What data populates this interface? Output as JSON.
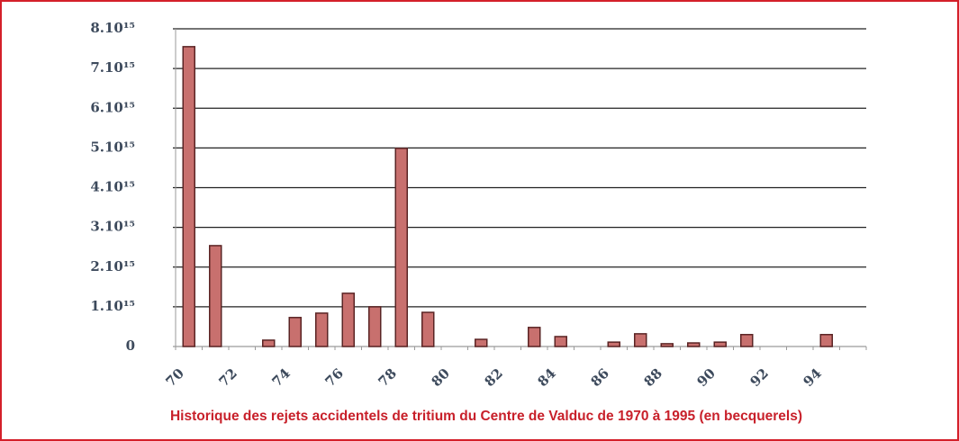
{
  "chart_data": {
    "type": "bar",
    "title": "Historique des rejets accidentels de tritium du Centre de Valduc de 1970 à 1995 (en becquerels)",
    "categories": [
      "70",
      null,
      "72",
      null,
      "74",
      null,
      "76",
      null,
      "78",
      null,
      "80",
      null,
      "82",
      null,
      "84",
      null,
      "86",
      null,
      "88",
      null,
      "90",
      null,
      "92",
      null,
      "94",
      null
    ],
    "values": [
      7550000000000000.0,
      2540000000000000.0,
      0,
      160000000000000.0,
      730000000000000.0,
      840000000000000.0,
      1340000000000000.0,
      1000000000000000.0,
      4990000000000000.0,
      860000000000000.0,
      0,
      180000000000000.0,
      0,
      480000000000000.0,
      250000000000000.0,
      0,
      110000000000000.0,
      320000000000000.0,
      70000000000000.0,
      90000000000000.0,
      110000000000000.0,
      300000000000000.0,
      0,
      0,
      300000000000000.0,
      0
    ],
    "color": "#c8706e",
    "ylim": [
      0,
      8000000000000000.0
    ],
    "yticks": [
      0,
      {
        "value": 1000000000000000.0,
        "label": "1.10¹⁵"
      },
      {
        "value": 2000000000000000.0,
        "label": "2.10¹⁵"
      },
      {
        "value": 3000000000000000.0,
        "label": "3.10¹⁵"
      },
      {
        "value": 4000000000000000.0,
        "label": "4.10¹⁵"
      },
      {
        "value": 5000000000000000.0,
        "label": "5.10¹⁵"
      },
      {
        "value": 6000000000000000.0,
        "label": "6.10¹⁵"
      },
      {
        "value": 7000000000000000.0,
        "label": "7.10¹⁵"
      },
      {
        "value": 8000000000000000.0,
        "label": "8.10¹⁵"
      }
    ],
    "grid": true
  }
}
